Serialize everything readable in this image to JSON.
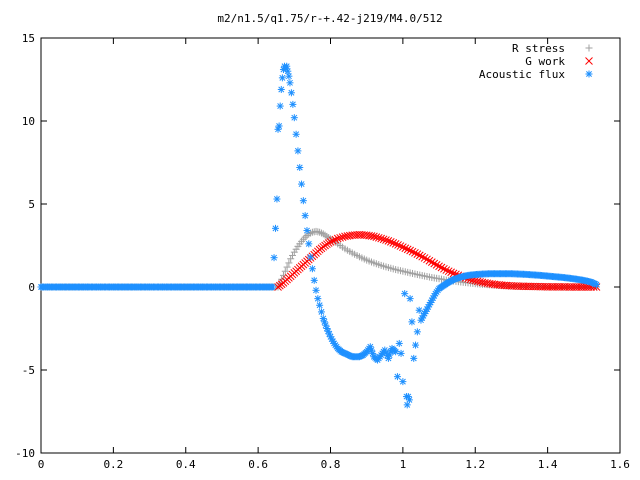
{
  "chart_data": {
    "type": "scatter",
    "title": "m2/n1.5/q1.75/r-+.42-j219/M4.0/512",
    "xlabel": "",
    "ylabel": "",
    "xlim": [
      0,
      1.6
    ],
    "ylim": [
      -10,
      15
    ],
    "xticks": [
      "0",
      "0.2",
      "0.4",
      "0.6",
      "0.8",
      "1",
      "1.2",
      "1.4",
      "1.6"
    ],
    "yticks": [
      "-10",
      "-5",
      "0",
      "5",
      "10",
      "15"
    ],
    "grid": false,
    "legend_position": "top-right",
    "series": [
      {
        "name": "R stress",
        "marker": "plus",
        "color": "#a0a0a0",
        "x": [
          0.0,
          0.1,
          0.2,
          0.3,
          0.4,
          0.5,
          0.6,
          0.655,
          0.67,
          0.68,
          0.69,
          0.7,
          0.71,
          0.72,
          0.73,
          0.74,
          0.75,
          0.76,
          0.77,
          0.78,
          0.79,
          0.8,
          0.82,
          0.84,
          0.86,
          0.88,
          0.9,
          0.92,
          0.94,
          0.96,
          0.98,
          1.0,
          1.02,
          1.04,
          1.06,
          1.08,
          1.1,
          1.12,
          1.14,
          1.16,
          1.18,
          1.2,
          1.22,
          1.24,
          1.26,
          1.28,
          1.3,
          1.32,
          1.34,
          1.36,
          1.38,
          1.4,
          1.42,
          1.44,
          1.46,
          1.48,
          1.5,
          1.52,
          1.535
        ],
        "y": [
          0,
          0,
          0,
          0,
          0,
          0,
          0,
          0,
          0.7,
          1.2,
          1.7,
          2.1,
          2.45,
          2.75,
          3.0,
          3.2,
          3.3,
          3.35,
          3.3,
          3.2,
          3.05,
          2.9,
          2.6,
          2.3,
          2.05,
          1.82,
          1.62,
          1.45,
          1.3,
          1.17,
          1.05,
          0.95,
          0.85,
          0.75,
          0.66,
          0.57,
          0.5,
          0.42,
          0.36,
          0.3,
          0.25,
          0.2,
          0.16,
          0.13,
          0.1,
          0.08,
          0.06,
          0.05,
          0.04,
          0.03,
          0.02,
          0.01,
          0.01,
          0,
          0,
          0,
          0,
          0,
          0
        ]
      },
      {
        "name": "G work",
        "marker": "cross",
        "color": "#ff0000",
        "x": [
          0.655,
          0.67,
          0.68,
          0.69,
          0.7,
          0.71,
          0.72,
          0.73,
          0.74,
          0.75,
          0.76,
          0.77,
          0.78,
          0.79,
          0.8,
          0.82,
          0.84,
          0.86,
          0.88,
          0.9,
          0.92,
          0.94,
          0.96,
          0.98,
          1.0,
          1.02,
          1.04,
          1.06,
          1.08,
          1.1,
          1.12,
          1.14,
          1.16,
          1.18,
          1.2,
          1.22,
          1.24,
          1.26,
          1.28,
          1.3,
          1.32,
          1.34,
          1.36,
          1.38,
          1.4,
          1.42,
          1.44,
          1.46,
          1.48,
          1.5,
          1.52,
          1.535
        ],
        "y": [
          0,
          0.25,
          0.45,
          0.65,
          0.85,
          1.05,
          1.25,
          1.45,
          1.65,
          1.85,
          2.05,
          2.25,
          2.42,
          2.58,
          2.72,
          2.92,
          3.05,
          3.12,
          3.15,
          3.12,
          3.05,
          2.92,
          2.78,
          2.6,
          2.4,
          2.2,
          1.98,
          1.75,
          1.5,
          1.25,
          1.02,
          0.82,
          0.65,
          0.5,
          0.38,
          0.28,
          0.2,
          0.14,
          0.1,
          0.07,
          0.05,
          0.04,
          0.03,
          0.02,
          0.01,
          0.01,
          0.01,
          0,
          0,
          0,
          0,
          0
        ]
      },
      {
        "name": "Acoustic flux",
        "marker": "star",
        "color": "#1e90ff",
        "x": [
          0.0,
          0.05,
          0.1,
          0.15,
          0.2,
          0.25,
          0.3,
          0.35,
          0.4,
          0.45,
          0.5,
          0.55,
          0.6,
          0.64,
          0.652,
          0.655,
          0.658,
          0.661,
          0.664,
          0.667,
          0.67,
          0.673,
          0.676,
          0.679,
          0.682,
          0.685,
          0.688,
          0.692,
          0.696,
          0.7,
          0.705,
          0.71,
          0.715,
          0.72,
          0.725,
          0.73,
          0.735,
          0.74,
          0.745,
          0.75,
          0.755,
          0.76,
          0.765,
          0.77,
          0.775,
          0.78,
          0.79,
          0.8,
          0.81,
          0.82,
          0.83,
          0.84,
          0.85,
          0.86,
          0.87,
          0.88,
          0.89,
          0.9,
          0.91,
          0.92,
          0.93,
          0.94,
          0.95,
          0.96,
          0.97,
          0.98,
          0.985,
          0.99,
          0.995,
          1.0,
          1.005,
          1.01,
          1.012,
          1.015,
          1.018,
          1.02,
          1.025,
          1.03,
          1.035,
          1.04,
          1.045,
          1.05,
          1.06,
          1.07,
          1.08,
          1.09,
          1.1,
          1.12,
          1.14,
          1.16,
          1.18,
          1.2,
          1.22,
          1.24,
          1.26,
          1.28,
          1.3,
          1.32,
          1.34,
          1.36,
          1.38,
          1.4,
          1.42,
          1.44,
          1.46,
          1.48,
          1.5,
          1.52,
          1.535
        ],
        "y": [
          0,
          0,
          0,
          0,
          0,
          0,
          0,
          0,
          0,
          0,
          0,
          0,
          0,
          0,
          5.3,
          9.5,
          9.7,
          10.9,
          11.9,
          12.6,
          13.1,
          13.3,
          13.2,
          13.3,
          13.0,
          12.7,
          12.3,
          11.7,
          11.0,
          10.2,
          9.2,
          8.2,
          7.2,
          6.2,
          5.2,
          4.3,
          3.4,
          2.6,
          1.8,
          1.1,
          0.4,
          -0.2,
          -0.7,
          -1.1,
          -1.5,
          -1.9,
          -2.5,
          -3.0,
          -3.4,
          -3.7,
          -3.9,
          -4.0,
          -4.1,
          -4.2,
          -4.2,
          -4.2,
          -4.1,
          -3.9,
          -3.6,
          -4.2,
          -4.4,
          -4.1,
          -3.8,
          -4.3,
          -3.7,
          -3.9,
          -5.4,
          -3.4,
          -4.0,
          -5.7,
          -0.4,
          -6.6,
          -7.1,
          -6.6,
          -6.8,
          -0.7,
          -2.1,
          -4.3,
          -3.5,
          -2.7,
          -1.4,
          -2.0,
          -1.6,
          -1.2,
          -0.8,
          -0.4,
          -0.1,
          0.2,
          0.45,
          0.6,
          0.7,
          0.75,
          0.78,
          0.8,
          0.8,
          0.8,
          0.8,
          0.78,
          0.76,
          0.73,
          0.7,
          0.66,
          0.62,
          0.58,
          0.53,
          0.47,
          0.4,
          0.3,
          0.15
        ]
      }
    ]
  }
}
